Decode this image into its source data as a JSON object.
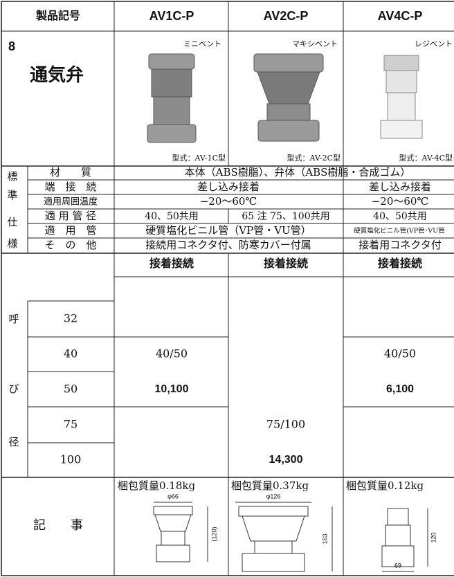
{
  "header": {
    "label": "製品記号",
    "products": [
      "AV1C-P",
      "AV2C-P",
      "AV4C-P"
    ]
  },
  "category": {
    "number": "8",
    "name": "通気弁"
  },
  "products": [
    {
      "nickname": "ミニベント",
      "model": "型式：AV-1C型"
    },
    {
      "nickname": "マキシベント",
      "model": "型式：AV-2C型"
    },
    {
      "nickname": "レジベント",
      "model": "型式：AV-4C型"
    }
  ],
  "spec": {
    "group_label": [
      "標",
      "準",
      "仕",
      "様"
    ],
    "rows": [
      {
        "label": "材　　質",
        "cells": [
          "本体（ABS樹脂）、弁体（ABS樹脂・合成ゴム）"
        ]
      },
      {
        "label": "端　接　続",
        "cells": [
          "差し込み接着",
          "差し込み接着"
        ]
      },
      {
        "label": "適用周囲温度",
        "cells": [
          "−20〜60℃",
          "−20〜60℃"
        ]
      },
      {
        "label": "適 用 管 径",
        "cells": [
          "40、50共用",
          "65 注 75、100共用",
          "40、50共用"
        ]
      },
      {
        "label": "適　用　管",
        "cells": [
          "硬質塩化ビニル管（VP管・VU管）",
          "硬質塩化ビニル管(VP管･VU管"
        ]
      },
      {
        "label": "そ　の　他",
        "cells": [
          "接続用コネクタ付、防寒カバー付属",
          "接着用コネクタ付"
        ]
      }
    ]
  },
  "connection": [
    "接着接続",
    "接着接続",
    "接着接続"
  ],
  "sizes": {
    "group_label": [
      "呼",
      "び",
      "径"
    ],
    "rows": [
      "32",
      "40",
      "50",
      "75",
      "100"
    ]
  },
  "prices": [
    {
      "size": "40/50",
      "price": "10,100"
    },
    {
      "size": "75/100",
      "price": "14,300"
    },
    {
      "size": "40/50",
      "price": "6,100"
    }
  ],
  "notes": {
    "label": "記　　事",
    "items": [
      {
        "weight": "梱包質量0.18kg",
        "dims": [
          "φ66",
          "(120)"
        ]
      },
      {
        "weight": "梱包質量0.37kg",
        "dims": [
          "φ126",
          "163"
        ]
      },
      {
        "weight": "梱包質量0.12kg",
        "dims": [
          "120",
          "69"
        ]
      }
    ]
  }
}
